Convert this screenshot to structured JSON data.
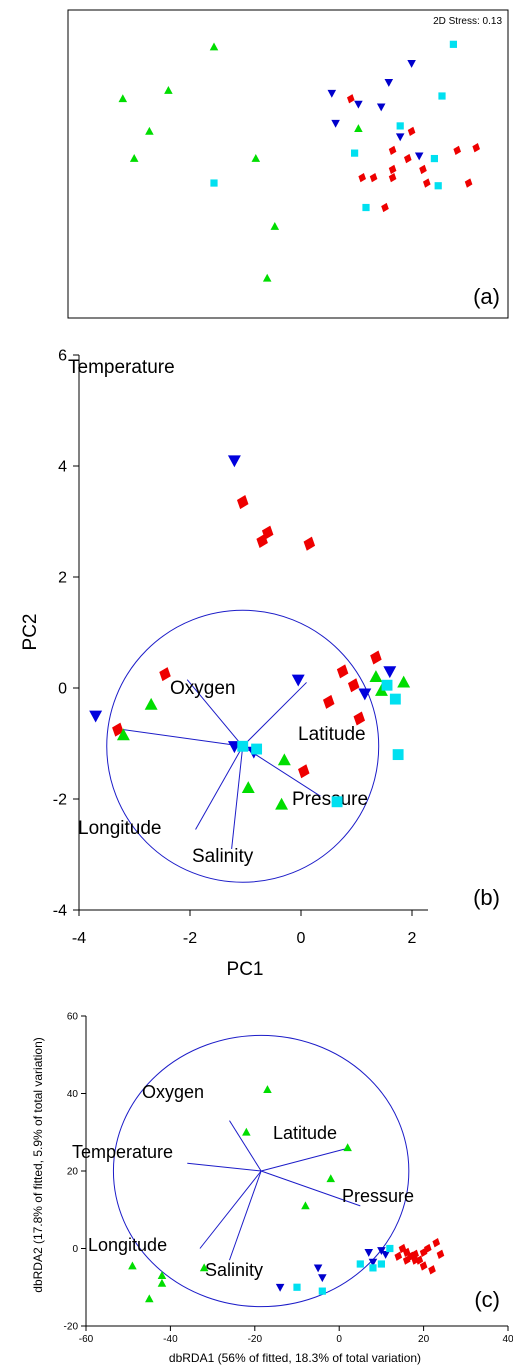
{
  "panels": [
    {
      "type": "scatter",
      "panel_label": "(a)",
      "stress_text": "2D Stress: 0.13",
      "xlim": [
        0,
        100
      ],
      "ylim": [
        0,
        100
      ],
      "grid": false,
      "legend": "none",
      "series": [
        {
          "marker": "triangle-up",
          "color": "#00dd00",
          "points": [
            [
              30,
              93
            ],
            [
              6,
              74
            ],
            [
              18,
              77
            ],
            [
              13,
              62
            ],
            [
              9,
              52
            ],
            [
              41,
              52
            ],
            [
              46,
              27
            ],
            [
              44,
              8
            ],
            [
              68,
              63
            ]
          ]
        },
        {
          "marker": "triangle-down",
          "color": "#0000cc",
          "points": [
            [
              61,
              76
            ],
            [
              68,
              72
            ],
            [
              74,
              71
            ],
            [
              76,
              80
            ],
            [
              82,
              87
            ],
            [
              62,
              65
            ],
            [
              79,
              60
            ],
            [
              84,
              53
            ]
          ]
        },
        {
          "marker": "square",
          "color": "#00e0f0",
          "points": [
            [
              93,
              94
            ],
            [
              90,
              75
            ],
            [
              79,
              64
            ],
            [
              67,
              54
            ],
            [
              30,
              43
            ],
            [
              88,
              52
            ],
            [
              89,
              42
            ],
            [
              70,
              34
            ]
          ]
        },
        {
          "marker": "diamond",
          "color": "#ee0000",
          "points": [
            [
              66,
              74
            ],
            [
              82,
              62
            ],
            [
              77,
              55
            ],
            [
              81,
              52
            ],
            [
              94,
              55
            ],
            [
              99,
              56
            ],
            [
              77,
              48
            ],
            [
              69,
              45
            ],
            [
              72,
              45
            ],
            [
              77,
              45
            ],
            [
              85,
              48
            ],
            [
              86,
              43
            ],
            [
              97,
              43
            ],
            [
              75,
              34
            ]
          ]
        }
      ]
    },
    {
      "type": "scatter",
      "panel_label": "(b)",
      "xlabel": "PC1",
      "ylabel": "PC2",
      "xlim": [
        -4,
        2.3
      ],
      "ylim": [
        -4,
        6
      ],
      "xticks": [
        -4,
        -2,
        0,
        2
      ],
      "yticks": [
        -4,
        -2,
        0,
        2,
        4,
        6
      ],
      "grid": false,
      "legend": "none",
      "circle": {
        "cx": -1.05,
        "cy": -1.05,
        "r": 2.45
      },
      "vectors": [
        {
          "label": "Oxygen",
          "x": -2.05,
          "y": 0.15
        },
        {
          "label": "Temperature",
          "x": -3.2,
          "y": -0.75
        },
        {
          "label": "Latitude",
          "x": 0.1,
          "y": 0.1
        },
        {
          "label": "Pressure",
          "x": 0.35,
          "y": -1.95
        },
        {
          "label": "Longitude",
          "x": -1.9,
          "y": -2.55
        },
        {
          "label": "Salinity",
          "x": -1.25,
          "y": -2.9
        }
      ],
      "series": [
        {
          "marker": "triangle-down",
          "color": "#0000dd",
          "points": [
            [
              -1.2,
              4.1
            ],
            [
              -3.7,
              -0.5
            ],
            [
              -0.05,
              0.15
            ],
            [
              1.15,
              -0.1
            ],
            [
              1.6,
              0.3
            ],
            [
              -1.2,
              -1.05
            ],
            [
              -0.85,
              -1.15
            ]
          ]
        },
        {
          "marker": "diamond",
          "color": "#ee0000",
          "points": [
            [
              -1.05,
              3.35
            ],
            [
              -0.6,
              2.8
            ],
            [
              -0.7,
              2.65
            ],
            [
              0.15,
              2.6
            ],
            [
              -2.45,
              0.25
            ],
            [
              -3.3,
              -0.75
            ],
            [
              0.75,
              0.3
            ],
            [
              1.35,
              0.55
            ],
            [
              0.95,
              0.05
            ],
            [
              0.5,
              -0.25
            ],
            [
              1.05,
              -0.55
            ],
            [
              0.05,
              -1.5
            ]
          ]
        },
        {
          "marker": "triangle-up",
          "color": "#00dd00",
          "points": [
            [
              -2.7,
              -0.3
            ],
            [
              -3.2,
              -0.85
            ],
            [
              -0.3,
              -1.3
            ],
            [
              -0.95,
              -1.8
            ],
            [
              -0.35,
              -2.1
            ],
            [
              1.35,
              0.2
            ],
            [
              1.45,
              -0.05
            ],
            [
              1.85,
              0.1
            ]
          ]
        },
        {
          "marker": "square",
          "color": "#00e0f0",
          "points": [
            [
              -1.05,
              -1.05
            ],
            [
              -0.8,
              -1.1
            ],
            [
              1.55,
              0.05
            ],
            [
              1.7,
              -0.2
            ],
            [
              1.75,
              -1.2
            ],
            [
              0.65,
              -2.05
            ]
          ]
        }
      ]
    },
    {
      "type": "scatter",
      "panel_label": "(c)",
      "xlabel": "dbRDA1 (56% of fitted, 18.3% of total variation)",
      "ylabel": "dbRDA2 (17.8% of fitted, 5.9% of total variation)",
      "xlim": [
        -60,
        40
      ],
      "ylim": [
        -20,
        60
      ],
      "xticks": [
        -60,
        -40,
        -20,
        0,
        20,
        40
      ],
      "yticks": [
        -20,
        0,
        20,
        40,
        60
      ],
      "grid": false,
      "legend": "none",
      "circle": {
        "cx": -18.5,
        "cy": 20,
        "r": 35
      },
      "vectors": [
        {
          "label": "Oxygen",
          "x": -26,
          "y": 33
        },
        {
          "label": "Temperature",
          "x": -36,
          "y": 22
        },
        {
          "label": "Latitude",
          "x": 2.5,
          "y": 26
        },
        {
          "label": "Pressure",
          "x": 5,
          "y": 11
        },
        {
          "label": "Longitude",
          "x": -33,
          "y": 0
        },
        {
          "label": "Salinity",
          "x": -26,
          "y": -3
        }
      ],
      "series": [
        {
          "marker": "triangle-up",
          "color": "#00dd00",
          "points": [
            [
              -17,
              41
            ],
            [
              -22,
              30
            ],
            [
              2,
              26
            ],
            [
              -2,
              18
            ],
            [
              -8,
              11
            ],
            [
              -49,
              -4.5
            ],
            [
              -32,
              -5
            ],
            [
              -42,
              -7
            ],
            [
              -42,
              -9
            ],
            [
              -45,
              -13
            ]
          ]
        },
        {
          "marker": "triangle-down",
          "color": "#0000cc",
          "points": [
            [
              -5,
              -5
            ],
            [
              -4,
              -7.5
            ],
            [
              -14,
              -10
            ],
            [
              7,
              -1
            ],
            [
              10,
              -0.5
            ],
            [
              11,
              -1.5
            ],
            [
              8,
              -3.5
            ]
          ]
        },
        {
          "marker": "square",
          "color": "#00e0f0",
          "points": [
            [
              -10,
              -10
            ],
            [
              -4,
              -11
            ],
            [
              5,
              -4
            ],
            [
              8,
              -5
            ],
            [
              10,
              -4
            ],
            [
              12,
              0
            ]
          ]
        },
        {
          "marker": "diamond",
          "color": "#ee0000",
          "points": [
            [
              15,
              0
            ],
            [
              16,
              -1
            ],
            [
              17,
              -2
            ],
            [
              18,
              -3
            ],
            [
              18,
              -1.5
            ],
            [
              20,
              -1
            ],
            [
              21,
              0
            ],
            [
              23,
              1.5
            ],
            [
              24,
              -1.5
            ],
            [
              19,
              -3
            ],
            [
              20,
              -4.5
            ],
            [
              22,
              -5.5
            ],
            [
              14,
              -2
            ],
            [
              16,
              -3
            ]
          ]
        }
      ]
    }
  ]
}
